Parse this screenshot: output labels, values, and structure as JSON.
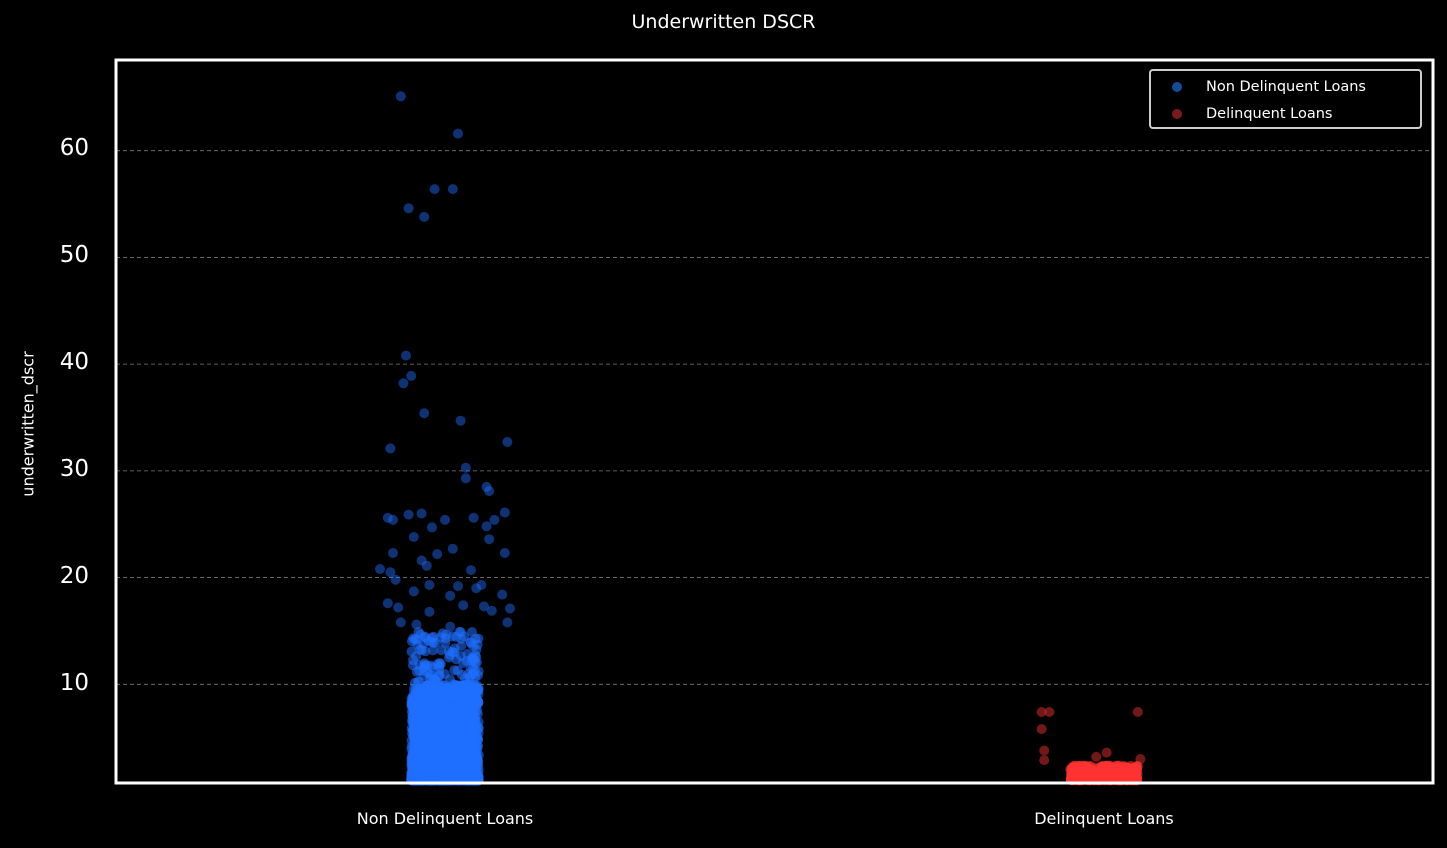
{
  "chart_data": {
    "type": "scatter",
    "subtype": "strip plot (jittered categorical scatter)",
    "title": "Underwritten DSCR",
    "xlabel": "",
    "ylabel": "underwritten_dscr",
    "categories": [
      "Non Delinquent Loans",
      "Delinquent Loans"
    ],
    "ylim": [
      0.75,
      68.5
    ],
    "yticks": [
      10,
      20,
      30,
      40,
      50,
      60
    ],
    "grid": {
      "y": true,
      "style": "dashed",
      "color": "#7a7a7a"
    },
    "legend": {
      "position": "upper right",
      "entries": [
        "Non Delinquent Loans",
        "Delinquent Loans"
      ]
    },
    "series": [
      {
        "name": "Non Delinquent Loans",
        "category": "Non Delinquent Loans",
        "color": "#1f6fff",
        "legend_color": "#134b9a",
        "dense_range": [
          1.0,
          10.0
        ],
        "outliers": [
          {
            "x": -0.17,
            "y": 65.1
          },
          {
            "x": 0.05,
            "y": 61.6
          },
          {
            "x": -0.04,
            "y": 56.4
          },
          {
            "x": 0.03,
            "y": 56.4
          },
          {
            "x": -0.14,
            "y": 54.6
          },
          {
            "x": -0.08,
            "y": 53.8
          },
          {
            "x": -0.15,
            "y": 40.8
          },
          {
            "x": -0.13,
            "y": 38.9
          },
          {
            "x": -0.16,
            "y": 38.2
          },
          {
            "x": -0.08,
            "y": 35.4
          },
          {
            "x": 0.06,
            "y": 34.7
          },
          {
            "x": -0.21,
            "y": 32.1
          },
          {
            "x": 0.24,
            "y": 32.7
          },
          {
            "x": 0.08,
            "y": 30.3
          },
          {
            "x": 0.08,
            "y": 29.3
          },
          {
            "x": 0.16,
            "y": 28.5
          },
          {
            "x": 0.17,
            "y": 28.1
          },
          {
            "x": -0.22,
            "y": 25.6
          },
          {
            "x": -0.2,
            "y": 25.4
          },
          {
            "x": -0.14,
            "y": 25.9
          },
          {
            "x": -0.09,
            "y": 26.0
          },
          {
            "x": -0.05,
            "y": 24.7
          },
          {
            "x": 0.0,
            "y": 25.4
          },
          {
            "x": 0.11,
            "y": 25.6
          },
          {
            "x": 0.19,
            "y": 25.4
          },
          {
            "x": 0.23,
            "y": 26.1
          },
          {
            "x": 0.16,
            "y": 24.8
          },
          {
            "x": -0.12,
            "y": 23.8
          },
          {
            "x": 0.17,
            "y": 23.6
          },
          {
            "x": -0.2,
            "y": 22.3
          },
          {
            "x": 0.03,
            "y": 22.7
          },
          {
            "x": -0.03,
            "y": 22.2
          },
          {
            "x": 0.23,
            "y": 22.3
          },
          {
            "x": -0.09,
            "y": 21.6
          },
          {
            "x": -0.07,
            "y": 21.1
          },
          {
            "x": -0.25,
            "y": 20.8
          },
          {
            "x": -0.21,
            "y": 20.5
          },
          {
            "x": 0.1,
            "y": 20.7
          },
          {
            "x": -0.19,
            "y": 19.8
          },
          {
            "x": -0.06,
            "y": 19.3
          },
          {
            "x": 0.05,
            "y": 19.2
          },
          {
            "x": 0.12,
            "y": 19.0
          },
          {
            "x": 0.14,
            "y": 19.3
          },
          {
            "x": -0.12,
            "y": 18.7
          },
          {
            "x": 0.02,
            "y": 18.3
          },
          {
            "x": 0.22,
            "y": 18.4
          },
          {
            "x": -0.22,
            "y": 17.6
          },
          {
            "x": -0.18,
            "y": 17.2
          },
          {
            "x": 0.07,
            "y": 17.4
          },
          {
            "x": 0.15,
            "y": 17.3
          },
          {
            "x": 0.25,
            "y": 17.1
          },
          {
            "x": -0.06,
            "y": 16.8
          },
          {
            "x": 0.18,
            "y": 16.9
          },
          {
            "x": -0.17,
            "y": 15.8
          },
          {
            "x": -0.11,
            "y": 15.6
          },
          {
            "x": 0.02,
            "y": 15.4
          },
          {
            "x": 0.24,
            "y": 15.8
          }
        ],
        "points_scale": "dense cloud from ~1.0 to ~10, very dense below ~7"
      },
      {
        "name": "Delinquent Loans",
        "category": "Delinquent Loans",
        "color": "#ff3333",
        "legend_color": "#7a1b1b",
        "dense_range": [
          1.0,
          2.4
        ],
        "outliers": [
          {
            "x": -0.24,
            "y": 7.4
          },
          {
            "x": -0.21,
            "y": 7.4
          },
          {
            "x": 0.13,
            "y": 7.4
          },
          {
            "x": -0.24,
            "y": 5.8
          },
          {
            "x": -0.23,
            "y": 3.8
          },
          {
            "x": 0.01,
            "y": 3.6
          },
          {
            "x": -0.03,
            "y": 3.2
          },
          {
            "x": 0.14,
            "y": 3.0
          },
          {
            "x": -0.23,
            "y": 2.9
          }
        ]
      }
    ]
  },
  "labels": {
    "title": "Underwritten DSCR",
    "ylabel": "underwritten_dscr",
    "yticks": [
      "10",
      "20",
      "30",
      "40",
      "50",
      "60"
    ],
    "xticks": [
      "Non Delinquent Loans",
      "Delinquent Loans"
    ],
    "legend": [
      "Non Delinquent Loans",
      "Delinquent Loans"
    ]
  },
  "colors": {
    "background": "#000000",
    "axes_edge": "#ffffff",
    "grid": "#7a7a7a",
    "text": "#ffffff",
    "non_delinquent": "#1f6fff",
    "non_delinquent_outlier": "#134b9a",
    "delinquent": "#ff3333",
    "delinquent_outlier": "#7a1b1b"
  }
}
